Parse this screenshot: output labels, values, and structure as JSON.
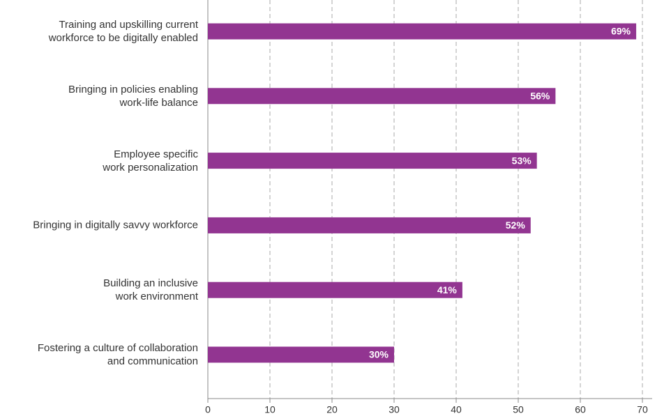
{
  "chart_data": {
    "type": "barh",
    "categories": [
      "Training and upskilling current\nworkforce to be digitally enabled",
      "Bringing in policies enabling\nwork-life balance",
      "Employee specific\nwork personalization",
      "Bringing in digitally savvy workforce",
      "Building an inclusive\nwork environment",
      "Fostering a culture of collaboration\nand communication"
    ],
    "values": [
      69,
      56,
      53,
      52,
      41,
      30
    ],
    "value_labels": [
      "69%",
      "56%",
      "53%",
      "52%",
      "41%",
      "30%"
    ],
    "color": "#923591",
    "xlim": [
      0,
      70
    ],
    "xticks": [
      0,
      10,
      20,
      30,
      40,
      50,
      60,
      70
    ],
    "grid": true
  }
}
